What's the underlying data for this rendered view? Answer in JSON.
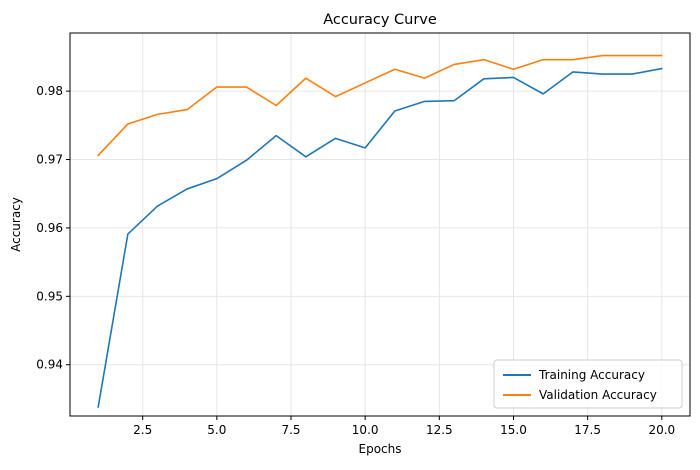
{
  "chart_data": {
    "type": "line",
    "title": "Accuracy Curve",
    "xlabel": "Epochs",
    "ylabel": "Accuracy",
    "xlim": [
      0.05,
      20.95
    ],
    "ylim": [
      0.9325,
      0.9885
    ],
    "xticks": [
      2.5,
      5.0,
      7.5,
      10.0,
      12.5,
      15.0,
      17.5,
      20.0
    ],
    "xtick_labels": [
      "2.5",
      "5.0",
      "7.5",
      "10.0",
      "12.5",
      "15.0",
      "17.5",
      "20.0"
    ],
    "yticks": [
      0.94,
      0.95,
      0.96,
      0.97,
      0.98
    ],
    "ytick_labels": [
      "0.94",
      "0.95",
      "0.96",
      "0.97",
      "0.98"
    ],
    "grid": true,
    "legend_position": "bottom-right",
    "x": [
      1,
      2,
      3,
      4,
      5,
      6,
      7,
      8,
      9,
      10,
      11,
      12,
      13,
      14,
      15,
      16,
      17,
      18,
      19,
      20
    ],
    "series": [
      {
        "name": "Training Accuracy",
        "color": "#1f77b4",
        "values": [
          0.9338,
          0.9591,
          0.9632,
          0.9657,
          0.9672,
          0.9699,
          0.9735,
          0.9704,
          0.9731,
          0.9717,
          0.9771,
          0.9785,
          0.9786,
          0.9818,
          0.982,
          0.9796,
          0.9828,
          0.9825,
          0.9825,
          0.9833
        ]
      },
      {
        "name": "Validation Accuracy",
        "color": "#ff7f0e",
        "values": [
          0.9706,
          0.9752,
          0.9766,
          0.9773,
          0.9806,
          0.9806,
          0.9779,
          0.9819,
          0.9792,
          0.9812,
          0.9832,
          0.9819,
          0.9839,
          0.9846,
          0.9832,
          0.9846,
          0.9846,
          0.9852,
          0.9852,
          0.9852
        ]
      }
    ]
  }
}
